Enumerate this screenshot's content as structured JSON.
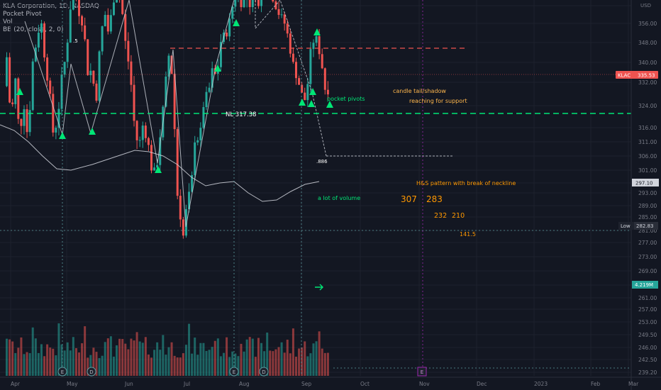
{
  "legend": {
    "symbol": "KLA Corporation, 1D, NASDAQ",
    "line2": "Pocket Pivot",
    "line3": "Vol",
    "line4": "BB (20, close, 2, 0)"
  },
  "price_axis": {
    "currency": "USD",
    "ticks": [
      "356.00",
      "348.00",
      "340.00",
      "332.00",
      "324.00",
      "316.00",
      "311.00",
      "306.00",
      "301.00",
      "297.00",
      "293.00",
      "289.00",
      "285.00",
      "281.00",
      "277.00",
      "273.00",
      "269.00",
      "265.00",
      "261.00",
      "257.00",
      "253.00",
      "249.50",
      "246.00",
      "242.50",
      "239.20"
    ],
    "current_symbol": "KLAC",
    "current_price": "335.53",
    "bb_value": "297.10",
    "low_label": "Low",
    "low_value": "282.83",
    "volume_value": "4.219M"
  },
  "time_axis": {
    "labels": [
      "Apr",
      "May",
      "Jun",
      "Jul",
      "Aug",
      "Sep",
      "Oct",
      "Nov",
      "Dec",
      "2023",
      "Feb",
      "Mar"
    ]
  },
  "annotations": {
    "pocket_pivots": "pocket pivots",
    "candle_tail": "candle tail/shadow",
    "reaching_support": "reaching for support",
    "neckline": "NL 317.38",
    "fib_886": ".886",
    "fib_5": ".5",
    "hs_pattern": "H&S pattern with break of neckline",
    "volume_note": "a lot of volume",
    "t307": "307",
    "t283": "283",
    "t232": "232",
    "t210": "210",
    "t141": "141.5"
  },
  "events": {
    "earnings": "E",
    "dividend": "D",
    "future_earnings": "E"
  },
  "colors": {
    "background": "#131722",
    "up": "#26a69a",
    "down": "#ef5350",
    "neckline": "#00e676",
    "red_dashed": "#ef5350",
    "bb": "#d1d4dc",
    "pivot": "#00e676",
    "orange_text": "#ff9800"
  },
  "chart_data": {
    "type": "candlestick",
    "title": "KLA Corporation, 1D, NASDAQ",
    "price_range": [
      237,
      363
    ],
    "levels": {
      "neckline": 317.38,
      "resistance": 346.5,
      "current": 335.53,
      "low": 282.83,
      "fib_886": 307.5
    },
    "key_points": [
      {
        "date": "Apr",
        "price": 358
      },
      {
        "date": "May",
        "price": 314
      },
      {
        "date": "Jun",
        "price": 360
      },
      {
        "date": "Jun-end",
        "price": 306
      },
      {
        "date": "Jul",
        "price": 282.83
      },
      {
        "date": "Aug",
        "price": 363
      },
      {
        "date": "Sep",
        "price": 329
      },
      {
        "date": "Sep-mid",
        "price": 335.53
      }
    ],
    "latest_volume": "4.219M"
  }
}
